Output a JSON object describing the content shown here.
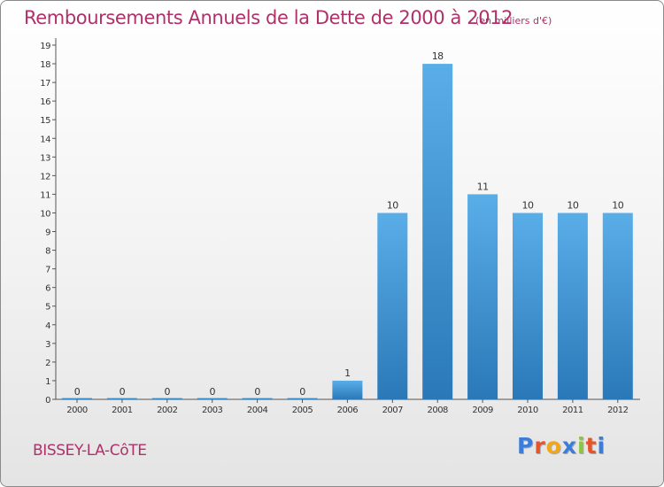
{
  "title": "Remboursements Annuels de la Dette de 2000 à 2012",
  "subtitle": "(en milliers d'€)",
  "commune": "BISSEY-LA-CôTE",
  "logo": [
    "P",
    "r",
    "o",
    "x",
    "i",
    "t",
    "i"
  ],
  "colors": {
    "title": "#b0306a",
    "bar_light": "#5aaee8",
    "bar_dark": "#2a78b8",
    "logo": [
      "#3b7dd8",
      "#e8542a",
      "#f2a71b",
      "#3b7dd8",
      "#8cc63f",
      "#e8542a",
      "#3b7dd8"
    ]
  },
  "chart_data": {
    "type": "bar",
    "title": "Remboursements Annuels de la Dette de 2000 à 2012",
    "subtitle": "(en milliers d'€)",
    "categories": [
      "2000",
      "2001",
      "2002",
      "2003",
      "2004",
      "2005",
      "2006",
      "2007",
      "2008",
      "2009",
      "2010",
      "2011",
      "2012"
    ],
    "values": [
      0,
      0,
      0,
      0,
      0,
      0,
      1,
      10,
      18,
      11,
      10,
      10,
      10
    ],
    "yticks": [
      0,
      1,
      2,
      3,
      4,
      5,
      6,
      7,
      8,
      9,
      10,
      11,
      12,
      13,
      14,
      15,
      16,
      17,
      18,
      19
    ],
    "ylim": [
      0,
      19
    ],
    "xlabel": "",
    "ylabel": "",
    "grid": false,
    "legend": "none"
  }
}
